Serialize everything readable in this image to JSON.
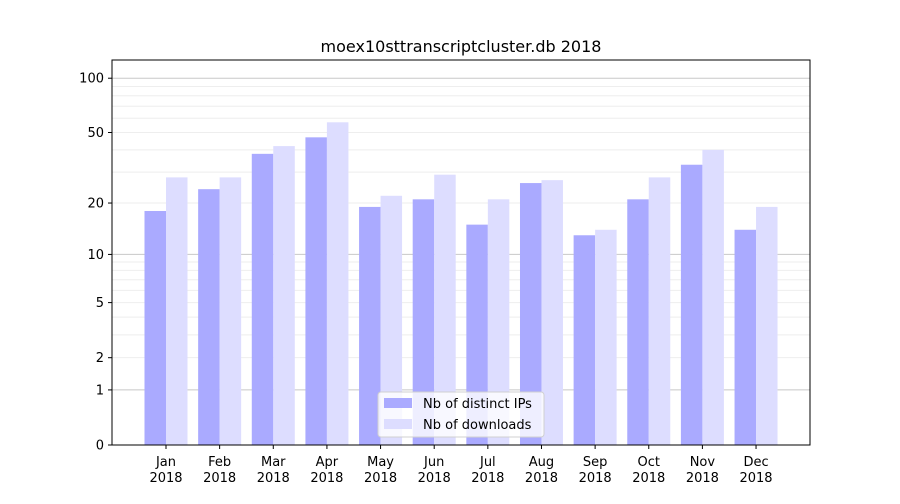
{
  "chart_data": {
    "type": "bar",
    "title": "moex10sttranscriptcluster.db 2018",
    "xlabel": "",
    "ylabel": "",
    "yscale": "symlog",
    "ylim": [
      0,
      120
    ],
    "yticks": [
      0,
      1,
      2,
      5,
      10,
      20,
      50,
      100
    ],
    "grid": true,
    "legend_position": "bottom-center",
    "categories": [
      "Jan\n2018",
      "Feb\n2018",
      "Mar\n2018",
      "Apr\n2018",
      "May\n2018",
      "Jun\n2018",
      "Jul\n2018",
      "Aug\n2018",
      "Sep\n2018",
      "Oct\n2018",
      "Nov\n2018",
      "Dec\n2018"
    ],
    "series": [
      {
        "name": "Nb of distinct IPs",
        "color": "#aaaaff",
        "values": [
          18,
          24,
          38,
          47,
          19,
          21,
          15,
          26,
          13,
          21,
          33,
          14
        ]
      },
      {
        "name": "Nb of downloads",
        "color": "#ddddff",
        "values": [
          28,
          28,
          42,
          57,
          22,
          29,
          21,
          27,
          14,
          28,
          40,
          19
        ]
      }
    ]
  }
}
